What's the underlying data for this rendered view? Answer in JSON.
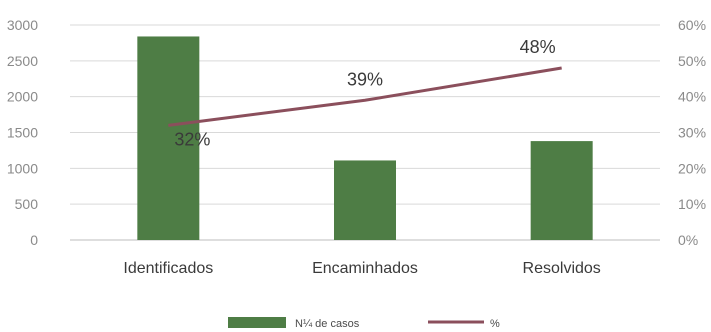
{
  "chart_data": {
    "type": "bar",
    "categories": [
      "Identificados",
      "Encaminhados",
      "Resolvidos"
    ],
    "series": [
      {
        "name": "N¼ de casos",
        "type": "bar",
        "axis": "left",
        "values": [
          2840,
          1110,
          1380
        ],
        "color": "#4e7d45"
      },
      {
        "name": "%",
        "type": "line",
        "axis": "right",
        "values": [
          32,
          39,
          48
        ],
        "color": "#8b4f5c"
      }
    ],
    "data_labels": [
      "32%",
      "39%",
      "48%"
    ],
    "y_left": {
      "ylim": [
        0,
        3000
      ],
      "ticks": [
        "0",
        "500",
        "1000",
        "1500",
        "2000",
        "2500",
        "3000"
      ]
    },
    "y_right": {
      "ylim": [
        0,
        60
      ],
      "ticks": [
        "0%",
        "10%",
        "20%",
        "30%",
        "40%",
        "50%",
        "60%"
      ]
    },
    "grid": true,
    "legend": "bottom"
  }
}
